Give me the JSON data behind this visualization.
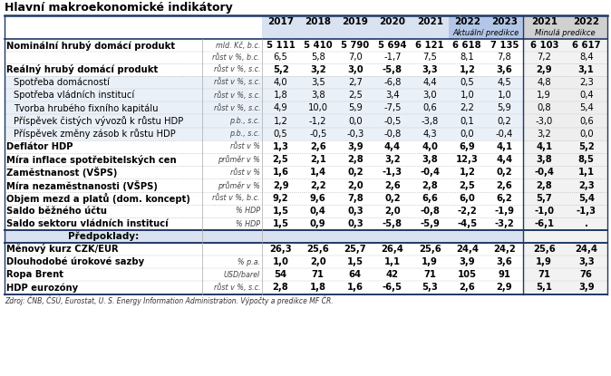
{
  "title": "Hlavní makroekonomické indikátory",
  "col_headers": [
    "2017",
    "2018",
    "2019",
    "2020",
    "2021",
    "2022",
    "2023",
    "2021",
    "2022"
  ],
  "rows": [
    {
      "label": "Nominální hrubý domácí produkt",
      "bold": true,
      "unit": "mld. Kč, b.c.",
      "vals": [
        "5 111",
        "5 410",
        "5 790",
        "5 694",
        "6 121",
        "6 618",
        "7 135",
        "6 103",
        "6 617"
      ],
      "bold_vals": true,
      "sub": false
    },
    {
      "label": "",
      "bold": false,
      "unit": "růst v %, b.c.",
      "vals": [
        "6,5",
        "5,8",
        "7,0",
        "-1,7",
        "7,5",
        "8,1",
        "7,8",
        "7,2",
        "8,4"
      ],
      "bold_vals": false,
      "sub": false
    },
    {
      "label": "Reálný hrubý domácí produkt",
      "bold": true,
      "unit": "růst v %, s.c.",
      "vals": [
        "5,2",
        "3,2",
        "3,0",
        "-5,8",
        "3,3",
        "1,2",
        "3,6",
        "2,9",
        "3,1"
      ],
      "bold_vals": true,
      "sub": false
    },
    {
      "label": "Spotřeba domácností",
      "bold": false,
      "unit": "růst v %, s.c.",
      "vals": [
        "4,0",
        "3,5",
        "2,7",
        "-6,8",
        "4,4",
        "0,5",
        "4,5",
        "4,8",
        "2,3"
      ],
      "bold_vals": false,
      "sub": true
    },
    {
      "label": "Spotřeba vládních institucí",
      "bold": false,
      "unit": "růst v %, s.c.",
      "vals": [
        "1,8",
        "3,8",
        "2,5",
        "3,4",
        "3,0",
        "1,0",
        "1,0",
        "1,9",
        "0,4"
      ],
      "bold_vals": false,
      "sub": true
    },
    {
      "label": "Tvorba hrubého fixního kapitálu",
      "bold": false,
      "unit": "růst v %, s.c.",
      "vals": [
        "4,9",
        "10,0",
        "5,9",
        "-7,5",
        "0,6",
        "2,2",
        "5,9",
        "0,8",
        "5,4"
      ],
      "bold_vals": false,
      "sub": true
    },
    {
      "label": "Příspěvek čistých vývozů k růstu HDP",
      "bold": false,
      "unit": "p.b., s.c.",
      "vals": [
        "1,2",
        "-1,2",
        "0,0",
        "-0,5",
        "-3,8",
        "0,1",
        "0,2",
        "-3,0",
        "0,6"
      ],
      "bold_vals": false,
      "sub": true
    },
    {
      "label": "Příspěvek změny zásob k růstu HDP",
      "bold": false,
      "unit": "p.b., s.c.",
      "vals": [
        "0,5",
        "-0,5",
        "-0,3",
        "-0,8",
        "4,3",
        "0,0",
        "-0,4",
        "3,2",
        "0,0"
      ],
      "bold_vals": false,
      "sub": true
    },
    {
      "label": "Deflátor HDP",
      "bold": true,
      "unit": "růst v %",
      "vals": [
        "1,3",
        "2,6",
        "3,9",
        "4,4",
        "4,0",
        "6,9",
        "4,1",
        "4,1",
        "5,2"
      ],
      "bold_vals": true,
      "sub": false
    },
    {
      "label": "Míra inflace spotřebitelských cen",
      "bold": true,
      "unit": "průměr v %",
      "vals": [
        "2,5",
        "2,1",
        "2,8",
        "3,2",
        "3,8",
        "12,3",
        "4,4",
        "3,8",
        "8,5"
      ],
      "bold_vals": true,
      "sub": false
    },
    {
      "label": "Zaměstnanost (VŠPS)",
      "bold": true,
      "unit": "růst v %",
      "vals": [
        "1,6",
        "1,4",
        "0,2",
        "-1,3",
        "-0,4",
        "1,2",
        "0,2",
        "-0,4",
        "1,1"
      ],
      "bold_vals": true,
      "sub": false
    },
    {
      "label": "Míra nezaměstnanosti (VŠPS)",
      "bold": true,
      "unit": "průměr v %",
      "vals": [
        "2,9",
        "2,2",
        "2,0",
        "2,6",
        "2,8",
        "2,5",
        "2,6",
        "2,8",
        "2,3"
      ],
      "bold_vals": true,
      "sub": false
    },
    {
      "label": "Objem mezd a platů (dom. koncept)",
      "bold": true,
      "unit": "růst v %, b.c.",
      "vals": [
        "9,2",
        "9,6",
        "7,8",
        "0,2",
        "6,6",
        "6,0",
        "6,2",
        "5,7",
        "5,4"
      ],
      "bold_vals": true,
      "sub": false
    },
    {
      "label": "Saldo běžného účtu",
      "bold": true,
      "unit": "% HDP",
      "vals": [
        "1,5",
        "0,4",
        "0,3",
        "2,0",
        "-0,8",
        "-2,2",
        "-1,9",
        "-1,0",
        "-1,3"
      ],
      "bold_vals": true,
      "sub": false
    },
    {
      "label": "Saldo sektoru vládních institucí",
      "bold": true,
      "unit": "% HDP",
      "vals": [
        "1,5",
        "0,9",
        "0,3",
        "-5,8",
        "-5,9",
        "-4,5",
        "-3,2",
        "-6,1",
        "."
      ],
      "bold_vals": true,
      "sub": false
    },
    {
      "label": "Předpoklady:",
      "bold": true,
      "unit": "",
      "vals": [
        "",
        "",
        "",
        "",
        "",
        "",
        "",
        "",
        ""
      ],
      "bold_vals": false,
      "sub": false,
      "section": true
    },
    {
      "label": "Měnový kurz CZK/EUR",
      "bold": true,
      "unit": "",
      "vals": [
        "26,3",
        "25,6",
        "25,7",
        "26,4",
        "25,6",
        "24,4",
        "24,2",
        "25,6",
        "24,4"
      ],
      "bold_vals": true,
      "sub": false
    },
    {
      "label": "Dlouhodobé úrokové sazby",
      "bold": true,
      "unit": "% p.a.",
      "vals": [
        "1,0",
        "2,0",
        "1,5",
        "1,1",
        "1,9",
        "3,9",
        "3,6",
        "1,9",
        "3,3"
      ],
      "bold_vals": true,
      "sub": false
    },
    {
      "label": "Ropa Brent",
      "bold": true,
      "unit": "USD/barel",
      "vals": [
        "54",
        "71",
        "64",
        "42",
        "71",
        "105",
        "91",
        "71",
        "76"
      ],
      "bold_vals": true,
      "sub": false
    },
    {
      "label": "HDP eurozóny",
      "bold": true,
      "unit": "růst v %, s.c.",
      "vals": [
        "2,8",
        "1,8",
        "1,6",
        "-6,5",
        "5,3",
        "2,6",
        "2,9",
        "5,1",
        "3,9"
      ],
      "bold_vals": true,
      "sub": false
    }
  ],
  "footer": "Zdroj: ČNB, ČSÚ, Eurostat, U. S. Energy Information Administration. Výpočty a predikce MF ČR.",
  "color_header_light": "#d9e2f0",
  "color_header_dark": "#b4c6e7",
  "color_prev_header": "#d0d0d0",
  "color_subrow": "#eaf0f8",
  "color_white": "#ffffff",
  "color_border_dark": "#1f3864",
  "color_border_mid": "#4472c4",
  "color_border_light": "#aaaaaa",
  "color_prev_bg": "#e8e8e8"
}
